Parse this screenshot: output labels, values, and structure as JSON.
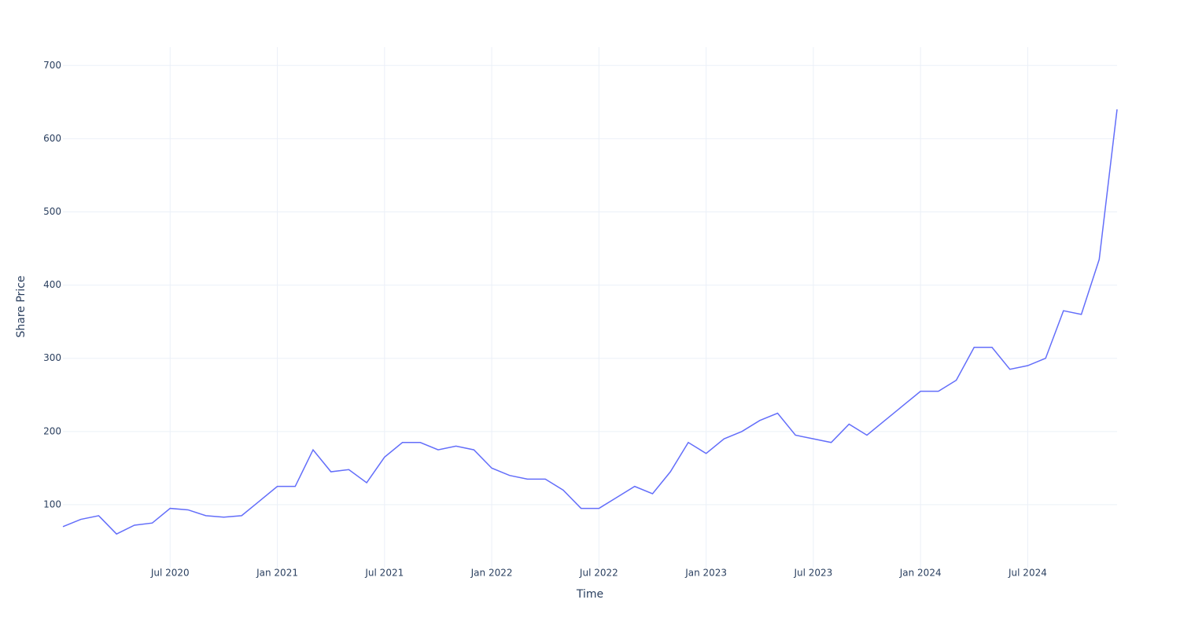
{
  "chart_data": {
    "type": "line",
    "x_label": "Time",
    "y_label": "Share Price",
    "x": [
      "2020-01",
      "2020-02",
      "2020-03",
      "2020-04",
      "2020-05",
      "2020-06",
      "2020-07",
      "2020-08",
      "2020-09",
      "2020-10",
      "2020-11",
      "2020-12",
      "2021-01",
      "2021-02",
      "2021-03",
      "2021-04",
      "2021-05",
      "2021-06",
      "2021-07",
      "2021-08",
      "2021-09",
      "2021-10",
      "2021-11",
      "2021-12",
      "2022-01",
      "2022-02",
      "2022-03",
      "2022-04",
      "2022-05",
      "2022-06",
      "2022-07",
      "2022-08",
      "2022-09",
      "2022-10",
      "2022-11",
      "2022-12",
      "2023-01",
      "2023-02",
      "2023-03",
      "2023-04",
      "2023-05",
      "2023-06",
      "2023-07",
      "2023-08",
      "2023-09",
      "2023-10",
      "2023-11",
      "2023-12",
      "2024-01",
      "2024-02",
      "2024-03",
      "2024-04",
      "2024-05",
      "2024-06",
      "2024-07",
      "2024-08",
      "2024-09",
      "2024-10",
      "2024-11",
      "2024-12"
    ],
    "series": [
      {
        "name": "Share Price",
        "color": "#636efa",
        "values": [
          70,
          80,
          85,
          60,
          72,
          75,
          95,
          93,
          85,
          83,
          85,
          105,
          125,
          125,
          175,
          145,
          148,
          130,
          165,
          185,
          185,
          175,
          180,
          175,
          150,
          140,
          135,
          135,
          120,
          95,
          95,
          110,
          125,
          115,
          145,
          185,
          170,
          190,
          200,
          215,
          225,
          195,
          190,
          185,
          210,
          195,
          215,
          235,
          255,
          255,
          270,
          315,
          315,
          285,
          290,
          300,
          365,
          360,
          435,
          640
        ]
      }
    ],
    "xlim": [
      "2020-01",
      "2024-12"
    ],
    "xticks": [
      {
        "value": "2020-07",
        "label": "Jul 2020"
      },
      {
        "value": "2021-01",
        "label": "Jan 2021"
      },
      {
        "value": "2021-07",
        "label": "Jul 2021"
      },
      {
        "value": "2022-01",
        "label": "Jan 2022"
      },
      {
        "value": "2022-07",
        "label": "Jul 2022"
      },
      {
        "value": "2023-01",
        "label": "Jan 2023"
      },
      {
        "value": "2023-07",
        "label": "Jul 2023"
      },
      {
        "value": "2024-01",
        "label": "Jan 2024"
      },
      {
        "value": "2024-07",
        "label": "Jul 2024"
      }
    ],
    "ylim": [
      14,
      725
    ],
    "yticks": [
      100,
      200,
      300,
      400,
      500,
      600,
      700
    ],
    "grid": true
  }
}
